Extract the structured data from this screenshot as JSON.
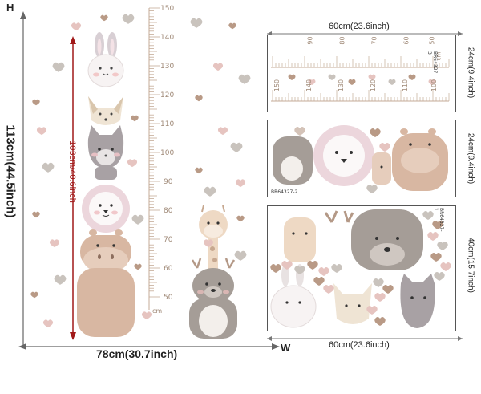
{
  "labels": {
    "h": "H",
    "w": "W",
    "height_total": "113cm(44.5inch)",
    "width_total": "78cm(30.7inch)",
    "inner_height": "103cm/40.6inch",
    "ruler_unit": "cm"
  },
  "main_ruler": {
    "ticks": [
      "150",
      "140",
      "130",
      "120",
      "110",
      "100",
      "90",
      "80",
      "70",
      "60",
      "50"
    ]
  },
  "sheet1": {
    "width_label": "60cm(23.6inch)",
    "height_label": "24cm(9.4inch)",
    "code": "BR64327-3",
    "unit": "cm",
    "top_ticks": [
      "90",
      "80",
      "70",
      "60",
      "50"
    ],
    "bottom_ticks": [
      "150",
      "140",
      "130",
      "120",
      "110",
      "100"
    ]
  },
  "sheet2": {
    "height_label": "24cm(9.4inch)",
    "code": "BR64327-2"
  },
  "sheet3": {
    "width_label": "60cm(23.6inch)",
    "height_label": "40cm(15.7inch)",
    "code": "BR64327-1"
  },
  "colors": {
    "heart_brown": "#b99a86",
    "heart_pink": "#e6c4c0",
    "heart_grey": "#c9c3bd",
    "ruler": "#c4ab97",
    "hippo": "#d8b7a2",
    "cat": "#a8a1a4",
    "lion_mane": "#ecd6dc",
    "deer": "#a59d97",
    "giraffe": "#e7d0b9",
    "arrow_red": "#a11818",
    "dimension_line": "#666666"
  }
}
